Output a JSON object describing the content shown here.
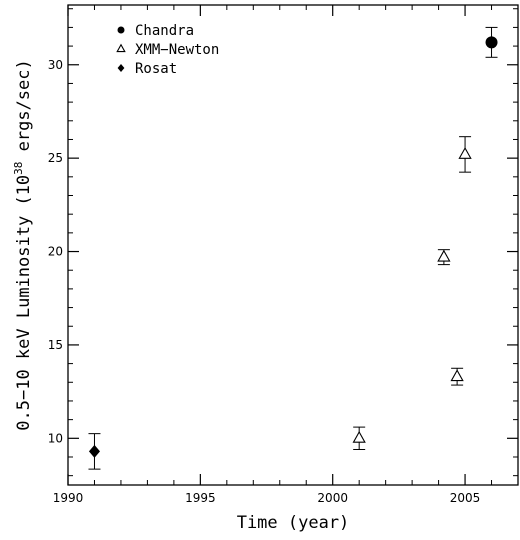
{
  "chart_data": {
    "type": "scatter",
    "title": "",
    "xlabel": "Time (year)",
    "ylabel_main": "0.5−10 keV Luminosity (10",
    "ylabel_sup": "38",
    "ylabel_end": " ergs/sec)",
    "xlim": [
      1990,
      2007
    ],
    "ylim": [
      7.5,
      33.2
    ],
    "x_ticks": [
      1990,
      1995,
      2000,
      2005
    ],
    "y_ticks": [
      10,
      15,
      20,
      25,
      30
    ],
    "legend_position": "top-left",
    "series": [
      {
        "name": "Chandra",
        "marker": "filled-circle",
        "points": [
          {
            "x": 2006.0,
            "y": 31.2,
            "err": 0.8
          }
        ]
      },
      {
        "name": "XMM−Newton",
        "marker": "open-triangle",
        "points": [
          {
            "x": 2001.0,
            "y": 10.0,
            "err": 0.6
          },
          {
            "x": 2004.2,
            "y": 19.7,
            "err": 0.4
          },
          {
            "x": 2004.7,
            "y": 13.3,
            "err": 0.45
          },
          {
            "x": 2005.0,
            "y": 25.2,
            "err": 0.95
          }
        ]
      },
      {
        "name": "Rosat",
        "marker": "filled-diamond",
        "points": [
          {
            "x": 1991.0,
            "y": 9.3,
            "err": 0.95
          }
        ]
      }
    ]
  }
}
